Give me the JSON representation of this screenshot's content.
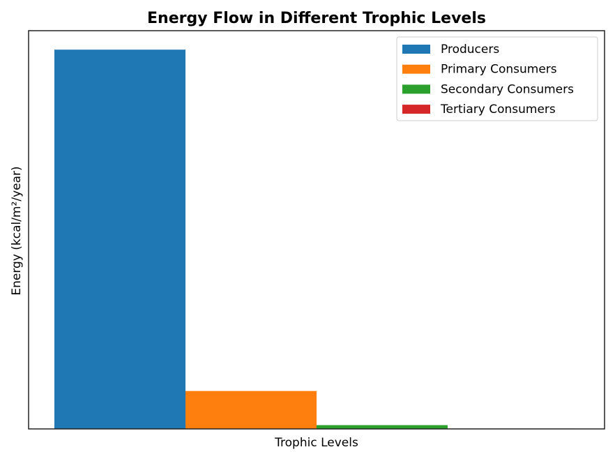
{
  "chart_data": {
    "type": "bar",
    "title": "Energy Flow in Different Trophic Levels",
    "xlabel": "Trophic Levels",
    "ylabel": "Energy (kcal/m²/year)",
    "categories": [
      ""
    ],
    "ylim": [
      0,
      10500
    ],
    "grid": false,
    "legend_position": "top-right",
    "show_y_ticks": false,
    "show_x_ticks": false,
    "series": [
      {
        "name": "Producers",
        "values": [
          10000
        ],
        "color": "#1f77b4"
      },
      {
        "name": "Primary Consumers",
        "values": [
          1000
        ],
        "color": "#ff7f0e"
      },
      {
        "name": "Secondary Consumers",
        "values": [
          100
        ],
        "color": "#2ca02c"
      },
      {
        "name": "Tertiary Consumers",
        "values": [
          10
        ],
        "color": "#d62728"
      }
    ]
  }
}
